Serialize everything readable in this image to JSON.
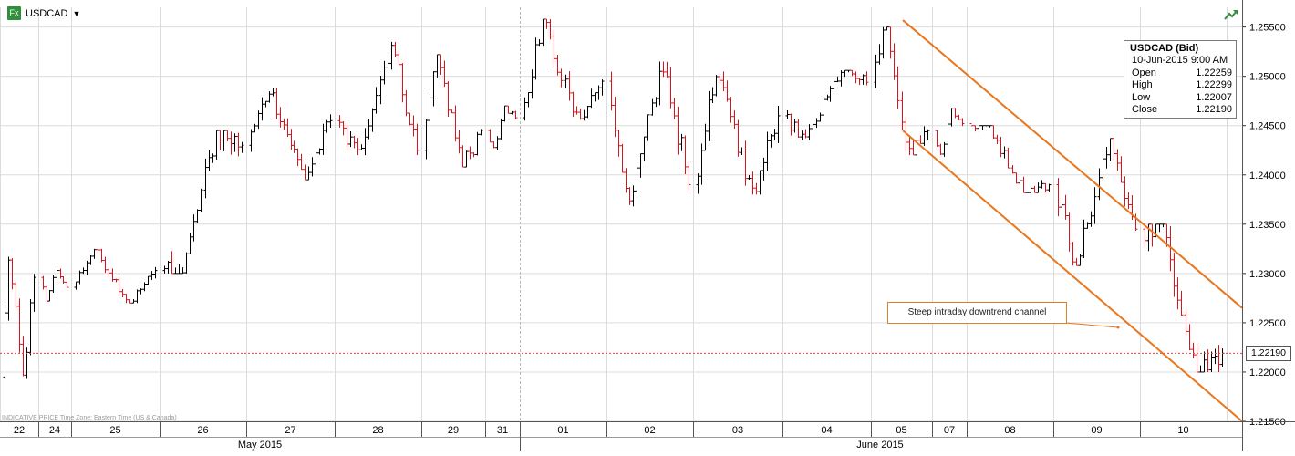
{
  "header": {
    "symbol": "USDCAD",
    "badge": "Fx"
  },
  "tooltip": {
    "title": "USDCAD (Bid)",
    "datetime": "10-Jun-2015 9:00 AM",
    "rows": [
      {
        "label": "Open",
        "value": "1.22259"
      },
      {
        "label": "High",
        "value": "1.22299"
      },
      {
        "label": "Low",
        "value": "1.22007"
      },
      {
        "label": "Close",
        "value": "1.22190"
      }
    ]
  },
  "footnote": "INDICATIVE PRICE   Time Zone: Eastern Time (US & Canada)",
  "annotation": "Steep intraday downtrend channel",
  "current_price_label": "1.22190",
  "colors": {
    "up": "#000000",
    "down": "#d4161f",
    "channel": "#e8761e",
    "grid": "#dcdcdc",
    "last_price_line": "#d64545"
  },
  "chart_data": {
    "type": "candlestick",
    "title": "USDCAD",
    "ylim": [
      1.215,
      1.257
    ],
    "y_ticks": [
      "1.25500",
      "1.25000",
      "1.24500",
      "1.24000",
      "1.23500",
      "1.23000",
      "1.22500",
      "1.22000",
      "1.21500"
    ],
    "x_labels": [
      "22",
      "24",
      "25",
      "26",
      "27",
      "28",
      "29",
      "31",
      "01",
      "02",
      "03",
      "04",
      "05",
      "07",
      "08",
      "09",
      "10"
    ],
    "month_labels": [
      "May 2015",
      "June 2015"
    ],
    "last_price": 1.2219,
    "grid": true,
    "interval": "hourly",
    "session_ohlc": [
      {
        "label": "22",
        "open": 1.2195,
        "high": 1.2318,
        "low": 1.2193,
        "close": 1.2296
      },
      {
        "label": "24",
        "open": 1.2296,
        "high": 1.2305,
        "low": 1.2272,
        "close": 1.2286
      },
      {
        "label": "25",
        "open": 1.2286,
        "high": 1.2325,
        "low": 1.227,
        "close": 1.2303
      },
      {
        "label": "26",
        "open": 1.2303,
        "high": 1.2445,
        "low": 1.23,
        "close": 1.243
      },
      {
        "label": "27",
        "open": 1.243,
        "high": 1.2488,
        "low": 1.2395,
        "close": 1.2455
      },
      {
        "label": "28",
        "open": 1.2455,
        "high": 1.2535,
        "low": 1.242,
        "close": 1.2425
      },
      {
        "label": "29",
        "open": 1.2425,
        "high": 1.2522,
        "low": 1.2408,
        "close": 1.2445
      },
      {
        "label": "31",
        "open": 1.2445,
        "high": 1.247,
        "low": 1.2425,
        "close": 1.2458
      },
      {
        "label": "01",
        "open": 1.2458,
        "high": 1.2558,
        "low": 1.2455,
        "close": 1.2495
      },
      {
        "label": "02",
        "open": 1.2495,
        "high": 1.2515,
        "low": 1.2368,
        "close": 1.239
      },
      {
        "label": "03",
        "open": 1.239,
        "high": 1.2507,
        "low": 1.238,
        "close": 1.246
      },
      {
        "label": "04",
        "open": 1.246,
        "high": 1.2506,
        "low": 1.2435,
        "close": 1.2494
      },
      {
        "label": "05",
        "open": 1.2494,
        "high": 1.255,
        "low": 1.242,
        "close": 1.2445
      },
      {
        "label": "07",
        "open": 1.2445,
        "high": 1.2468,
        "low": 1.2418,
        "close": 1.2452
      },
      {
        "label": "08",
        "open": 1.2452,
        "high": 1.245,
        "low": 1.2382,
        "close": 1.239
      },
      {
        "label": "09",
        "open": 1.239,
        "high": 1.2437,
        "low": 1.2308,
        "close": 1.2345
      },
      {
        "label": "10",
        "open": 1.2345,
        "high": 1.235,
        "low": 1.22,
        "close": 1.2219
      }
    ],
    "channel_lines": [
      {
        "name": "upper",
        "from": {
          "session": "05",
          "price": 1.2557
        },
        "to": {
          "session": "beyond 10",
          "price": 1.2265
        }
      },
      {
        "name": "lower",
        "from": {
          "session": "05",
          "price": 1.2445
        },
        "to": {
          "session": "beyond 10",
          "price": 1.215
        }
      }
    ]
  }
}
